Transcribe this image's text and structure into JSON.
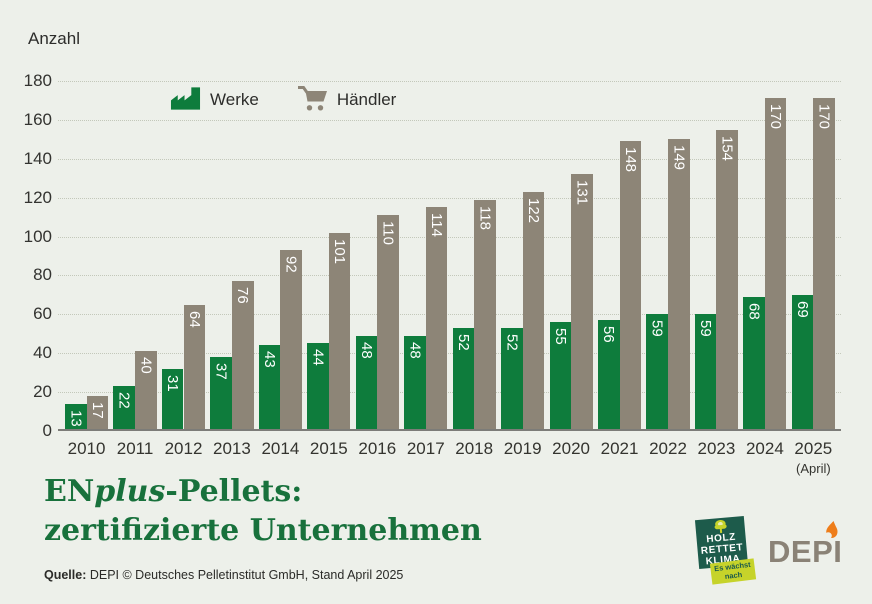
{
  "axis": {
    "unit_label": "Anzahl",
    "x_axis_note": "(April)"
  },
  "legend": {
    "items": [
      {
        "label": "Werke",
        "icon": "factory-icon",
        "color": "#0e7c3c"
      },
      {
        "label": "Händler",
        "icon": "cart-icon",
        "color": "#8d8577"
      }
    ]
  },
  "chart_data": {
    "type": "bar",
    "categories": [
      "2010",
      "2011",
      "2012",
      "2013",
      "2014",
      "2015",
      "2016",
      "2017",
      "2018",
      "2019",
      "2020",
      "2021",
      "2022",
      "2023",
      "2024",
      "2025"
    ],
    "x_sublabels": {
      "2025": "(April)"
    },
    "series": [
      {
        "key": "werke",
        "name": "Werke",
        "color": "#0e7c3c",
        "values": [
          13,
          22,
          31,
          37,
          43,
          44,
          48,
          48,
          52,
          52,
          55,
          56,
          59,
          59,
          68,
          69
        ]
      },
      {
        "key": "haendler",
        "name": "Händler",
        "color": "#8d8577",
        "values": [
          17,
          40,
          64,
          76,
          92,
          101,
          110,
          114,
          118,
          122,
          131,
          148,
          149,
          154,
          170,
          170
        ]
      }
    ],
    "title": "ENplus-Pellets: zertifizierte Unternehmen",
    "xlabel": "",
    "ylabel": "Anzahl",
    "ylim": [
      0,
      180
    ],
    "yticks": [
      0,
      20,
      40,
      60,
      80,
      100,
      120,
      140,
      160,
      180
    ],
    "grid": "horizontal dotted",
    "legend_position": "top-inside",
    "value_labels": "rotated 90° clockwise, white, inside bar top"
  },
  "title": {
    "prefix": "EN",
    "italic": "plus",
    "suffix": "-Pellets:",
    "line2": "zertifizierte Unternehmen"
  },
  "source": {
    "label": "Quelle:",
    "text": " DEPI  © Deutsches Pelletinstitut GmbH, Stand April 2025"
  },
  "logos": {
    "holz": {
      "line1": "HOLZ",
      "line2": "RETTET",
      "line3": "KLIMA",
      "tag1": "Es wächst",
      "tag2": "nach",
      "bg_color": "#1d5b4b",
      "tag_color": "#c6d32a"
    },
    "depi": {
      "text": "DEPI",
      "text_color": "#8a8276",
      "flame_color": "#ee7d1a"
    }
  },
  "colors": {
    "background": "#edf0ea",
    "bar_werke": "#0e7c3c",
    "bar_haendler": "#8d8577",
    "gridline": "#c3c8ba",
    "axis_line": "#7c7c78",
    "title_green": "#18713c",
    "text": "#2d2d2b"
  }
}
